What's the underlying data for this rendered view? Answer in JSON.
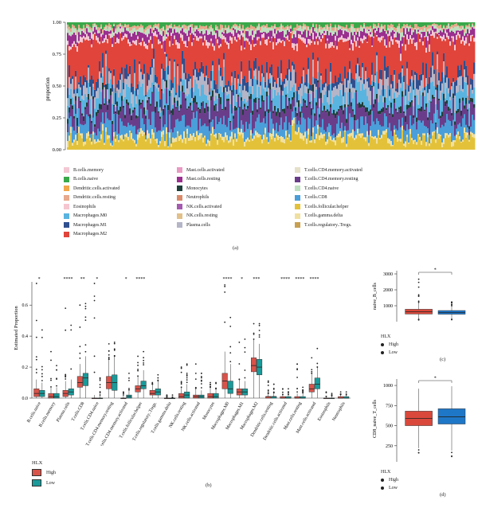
{
  "panel_labels": {
    "a": "(a)",
    "b": "(b)",
    "c": "(c)",
    "d": "(d)"
  },
  "colors": {
    "high": "#d9534a",
    "low": "#1a9a9a",
    "high_c": "#d9483b",
    "low_c": "#1f77c8"
  },
  "legend_a": [
    {
      "label": "B.cells.memory",
      "color": "#f3c7d3"
    },
    {
      "label": "B.cells.naive",
      "color": "#3aa84a"
    },
    {
      "label": "Dendritic.cells.activated",
      "color": "#f2a64a"
    },
    {
      "label": "Dendritic.cells.resting",
      "color": "#e8a98c"
    },
    {
      "label": "Eosinophils",
      "color": "#f5c6cf"
    },
    {
      "label": "Macrophages.M0",
      "color": "#5ab4e0"
    },
    {
      "label": "Macrophages.M1",
      "color": "#2f4f8f"
    },
    {
      "label": "Macrophages.M2",
      "color": "#e0443a"
    },
    {
      "label": "Mast.cells.activated",
      "color": "#e89ac2"
    },
    {
      "label": "Mast.cells.resting",
      "color": "#9a2f8f"
    },
    {
      "label": "Monocytes",
      "color": "#1f3f3a"
    },
    {
      "label": "Neutrophils",
      "color": "#d98a6a"
    },
    {
      "label": "NK.cells.activated",
      "color": "#a55ab0"
    },
    {
      "label": "NK.cells.resting",
      "color": "#e2c08a"
    },
    {
      "label": "Plasma.cells",
      "color": "#b5b5c8"
    },
    {
      "label": "T.cells.CD4.memory.activated",
      "color": "#e5e0c8"
    },
    {
      "label": "T.cells.CD4.memory.resting",
      "color": "#6a3d8a"
    },
    {
      "label": "T.cells.CD4.naive",
      "color": "#bfe0c0"
    },
    {
      "label": "T.cells.CD8",
      "color": "#4a9ed9"
    },
    {
      "label": "T.cells.follicular.helper",
      "color": "#e3c23a"
    },
    {
      "label": "T.cells.gamma.delta",
      "color": "#f0e0a0"
    },
    {
      "label": "T.cells.regulatory..Tregs.",
      "color": "#c8a050"
    }
  ],
  "chart_data": [
    {
      "id": "a",
      "type": "bar",
      "subtype": "stacked_proportion",
      "ylabel": "proportion",
      "yticks": [
        "0.00",
        "0.25",
        "0.50",
        "0.75",
        "1.00"
      ],
      "ylim": [
        0,
        1
      ],
      "approx_mean_proportions": {
        "T.cells.follicular.helper": 0.08,
        "T.cells.CD8": 0.1,
        "T.cells.CD4.memory.resting": 0.12,
        "Macrophages.M0": 0.1,
        "Plasma.cells": 0.08,
        "Macrophages.M2": 0.25,
        "Macrophages.M1": 0.06,
        "Mast.cells.resting": 0.05,
        "B.cells.naive": 0.03,
        "others": 0.13
      }
    },
    {
      "id": "b",
      "type": "box",
      "ylabel": "Estimated Proportion",
      "ylim": [
        0,
        0.75
      ],
      "yticks": [
        "0.0",
        "0.2",
        "0.4",
        "0.6"
      ],
      "legend_title": "HLX",
      "legend": [
        "High",
        "Low"
      ],
      "categories": [
        "B.cells.naive",
        "B.cells.memory",
        "Plasma.cells",
        "T.cells.CD8",
        "T.cells.CD4.naive",
        "T.cells.CD4.memory.resting",
        "T.cells.CD4.memory.activated",
        "T.cells.follicular.helper",
        "T.cells.regulatory..Tregs.",
        "T.cells.gamma.delta",
        "NK.cells.resting",
        "NK.cells.activated",
        "Monocytes",
        "Macrophages.M0",
        "Macrophages.M1",
        "Macrophages.M2",
        "Dendritic.cells.resting",
        "Dendritic.cells.activated",
        "Mast.cells.resting",
        "Mast.cells.activated",
        "Eosinophils",
        "Neutrophils"
      ],
      "significance": [
        "*",
        "",
        "****",
        "**",
        "*",
        "",
        "*",
        "****",
        "",
        "",
        "",
        "",
        "",
        "****",
        "*",
        "***",
        "",
        "****",
        "****",
        "****",
        "",
        ""
      ],
      "series": [
        {
          "name": "High",
          "q1": [
            0.01,
            0.0,
            0.01,
            0.07,
            0.0,
            0.06,
            0.0,
            0.04,
            0.02,
            0.0,
            0.0,
            0.0,
            0.0,
            0.06,
            0.02,
            0.17,
            0.0,
            0.0,
            0.0,
            0.04,
            0.0,
            0.0
          ],
          "median": [
            0.03,
            0.01,
            0.03,
            0.1,
            0.0,
            0.1,
            0.0,
            0.06,
            0.03,
            0.0,
            0.01,
            0.01,
            0.01,
            0.11,
            0.04,
            0.21,
            0.01,
            0.0,
            0.0,
            0.06,
            0.0,
            0.0
          ],
          "q3": [
            0.06,
            0.03,
            0.05,
            0.14,
            0.0,
            0.14,
            0.0,
            0.08,
            0.05,
            0.0,
            0.03,
            0.02,
            0.03,
            0.16,
            0.06,
            0.26,
            0.01,
            0.01,
            0.01,
            0.09,
            0.0,
            0.01
          ],
          "whisker_high": [
            0.12,
            0.07,
            0.11,
            0.22,
            0.02,
            0.25,
            0.02,
            0.14,
            0.09,
            0.0,
            0.07,
            0.06,
            0.07,
            0.3,
            0.12,
            0.38,
            0.03,
            0.02,
            0.03,
            0.16,
            0.01,
            0.02
          ],
          "max": [
            0.74,
            0.3,
            0.58,
            0.6,
            0.74,
            0.35,
            0.04,
            0.27,
            0.1,
            0.02,
            0.2,
            0.22,
            0.1,
            0.73,
            0.36,
            0.48,
            0.11,
            0.06,
            0.22,
            0.26,
            0.04,
            0.04
          ]
        },
        {
          "name": "Low",
          "q1": [
            0.01,
            0.0,
            0.02,
            0.08,
            0.0,
            0.05,
            0.0,
            0.06,
            0.02,
            0.0,
            0.0,
            0.0,
            0.0,
            0.03,
            0.02,
            0.15,
            0.0,
            0.0,
            0.0,
            0.06,
            0.0,
            0.0
          ],
          "median": [
            0.03,
            0.01,
            0.04,
            0.13,
            0.0,
            0.1,
            0.01,
            0.08,
            0.04,
            0.0,
            0.02,
            0.01,
            0.01,
            0.06,
            0.04,
            0.2,
            0.01,
            0.0,
            0.0,
            0.09,
            0.0,
            0.0
          ],
          "q3": [
            0.05,
            0.03,
            0.06,
            0.16,
            0.0,
            0.15,
            0.02,
            0.11,
            0.06,
            0.0,
            0.04,
            0.02,
            0.03,
            0.11,
            0.06,
            0.25,
            0.01,
            0.01,
            0.01,
            0.13,
            0.0,
            0.01
          ],
          "whisker_high": [
            0.1,
            0.07,
            0.12,
            0.27,
            0.02,
            0.27,
            0.05,
            0.18,
            0.11,
            0.0,
            0.09,
            0.05,
            0.06,
            0.22,
            0.11,
            0.35,
            0.03,
            0.02,
            0.03,
            0.2,
            0.01,
            0.02
          ],
          "max": [
            0.44,
            0.21,
            0.47,
            0.61,
            0.13,
            0.36,
            0.16,
            0.3,
            0.15,
            0.02,
            0.22,
            0.16,
            0.1,
            0.52,
            0.38,
            0.48,
            0.09,
            0.06,
            0.07,
            0.32,
            0.03,
            0.04
          ]
        }
      ]
    },
    {
      "id": "c",
      "type": "box",
      "ylabel": "naive_B_cells",
      "yticks": [
        "1000",
        "2000",
        "3000"
      ],
      "ylim": [
        0,
        3200
      ],
      "significance": "*",
      "legend_title": "HLX",
      "legend": [
        "High",
        "Low"
      ],
      "series": [
        {
          "name": "High",
          "q1": 480,
          "median": 620,
          "q3": 780,
          "whisker_low": 150,
          "whisker_high": 1200,
          "max": 2900
        },
        {
          "name": "Low",
          "q1": 470,
          "median": 580,
          "q3": 700,
          "whisker_low": 150,
          "whisker_high": 1000,
          "max": 1250
        }
      ]
    },
    {
      "id": "d",
      "type": "box",
      "ylabel": "CD8_naive_T_cells",
      "yticks": [
        "250",
        "500",
        "750",
        "1000"
      ],
      "ylim": [
        50,
        1080
      ],
      "significance": "*",
      "legend_title": "HLX",
      "legend": [
        "High",
        "Low"
      ],
      "series": [
        {
          "name": "High",
          "q1": 500,
          "median": 590,
          "q3": 680,
          "whisker_low": 220,
          "whisker_high": 960,
          "max": 960
        },
        {
          "name": "Low",
          "q1": 520,
          "median": 610,
          "q3": 710,
          "whisker_low": 190,
          "whisker_high": 990,
          "max": 990
        }
      ]
    }
  ]
}
